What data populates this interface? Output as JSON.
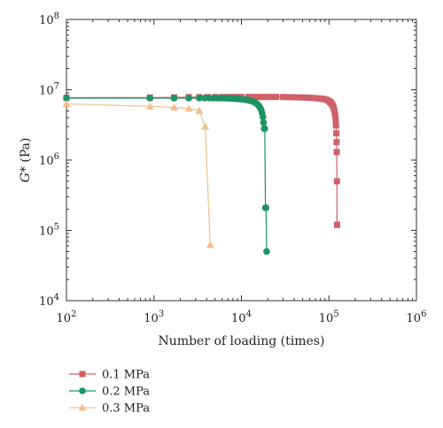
{
  "chart_data": {
    "type": "line",
    "title": "",
    "xlabel": "Number of loading (times)",
    "ylabel_italic": "G*",
    "ylabel_unit": " (Pa)",
    "xscale": "log",
    "yscale": "log",
    "xlim": [
      100,
      1000000
    ],
    "ylim": [
      10000,
      100000000
    ],
    "x_ticks": [
      {
        "base": "10",
        "exp": "2"
      },
      {
        "base": "10",
        "exp": "3"
      },
      {
        "base": "10",
        "exp": "4"
      },
      {
        "base": "10",
        "exp": "5"
      },
      {
        "base": "10",
        "exp": "6"
      }
    ],
    "y_ticks": [
      {
        "base": "10",
        "exp": "4"
      },
      {
        "base": "10",
        "exp": "5"
      },
      {
        "base": "10",
        "exp": "6"
      },
      {
        "base": "10",
        "exp": "7"
      },
      {
        "base": "10",
        "exp": "8"
      }
    ],
    "grid": false,
    "legend_position": "below-left",
    "series": [
      {
        "name": "0.1 MPa",
        "color": "#d0606a",
        "marker": "square",
        "x": [
          100,
          900,
          1700,
          2500,
          3300,
          4100,
          5000,
          6000,
          7000,
          8000,
          9000,
          10000,
          12000,
          14000,
          16000,
          18000,
          20000,
          22000,
          25000,
          30000,
          35000,
          40000,
          45000,
          50000,
          55000,
          60000,
          65000,
          70000,
          75000,
          80000,
          85000,
          90000,
          95000,
          100000,
          103000,
          106000,
          109000,
          112000,
          114000,
          116000,
          118000,
          119500,
          120500,
          121500,
          122300,
          122900,
          123400,
          123800,
          124100
        ],
        "y": [
          7700000,
          7750000,
          7800000,
          7850000,
          7850000,
          7880000,
          7900000,
          7900000,
          7900000,
          7900000,
          7900000,
          7900000,
          7900000,
          7900000,
          7900000,
          7900000,
          7900000,
          7900000,
          7900000,
          7880000,
          7850000,
          7820000,
          7800000,
          7780000,
          7750000,
          7700000,
          7650000,
          7600000,
          7550000,
          7480000,
          7400000,
          7300000,
          7150000,
          6900000,
          6700000,
          6450000,
          6150000,
          5750000,
          5350000,
          4900000,
          4300000,
          3700000,
          3100000,
          2400000,
          1800000,
          1300000,
          500000,
          120000,
          120000
        ]
      },
      {
        "name": "0.2 MPa",
        "color": "#1e9363",
        "marker": "circle",
        "x": [
          100,
          900,
          1700,
          2500,
          3300,
          3800,
          4300,
          4800,
          5300,
          5800,
          6300,
          6800,
          7300,
          7800,
          8300,
          8800,
          9300,
          9800,
          10300,
          10800,
          11300,
          11800,
          12300,
          12800,
          13300,
          13800,
          14300,
          14800,
          15300,
          15800,
          16300,
          16800,
          17200,
          17600,
          17900,
          18200,
          18500,
          18800,
          19100,
          19400
        ],
        "y": [
          7600000,
          7600000,
          7600000,
          7600000,
          7600000,
          7600000,
          7600000,
          7600000,
          7600000,
          7600000,
          7600000,
          7580000,
          7550000,
          7520000,
          7500000,
          7450000,
          7400000,
          7350000,
          7300000,
          7250000,
          7200000,
          7150000,
          7050000,
          6950000,
          6850000,
          6750000,
          6600000,
          6400000,
          6200000,
          5900000,
          5600000,
          5200000,
          4700000,
          4100000,
          3400000,
          2800000,
          2800000,
          210000,
          210000,
          50000
        ]
      },
      {
        "name": "0.3 MPa",
        "color": "#f0c08c",
        "marker": "triangle",
        "x": [
          100,
          900,
          1700,
          2500,
          3300,
          3850,
          4400
        ],
        "y": [
          6300000,
          5800000,
          5600000,
          5400000,
          5000000,
          3000000,
          62000
        ]
      }
    ]
  }
}
